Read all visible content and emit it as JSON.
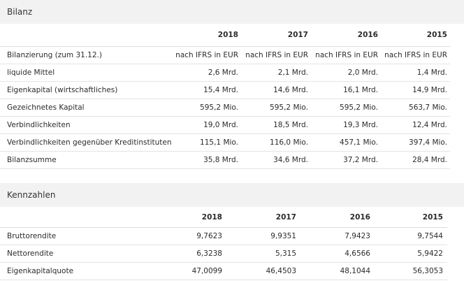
{
  "bilanz": {
    "title": "Bilanz",
    "years": [
      "2018",
      "2017",
      "2016",
      "2015"
    ],
    "rows": [
      {
        "label": "Bilanzierung (zum 31.12.)",
        "values": [
          "nach IFRS in EUR",
          "nach IFRS in EUR",
          "nach IFRS in EUR",
          "nach IFRS in EUR"
        ]
      },
      {
        "label": "liquide Mittel",
        "values": [
          "2,6 Mrd.",
          "2,1 Mrd.",
          "2,0 Mrd.",
          "1,4 Mrd."
        ]
      },
      {
        "label": "Eigenkapital (wirtschaftliches)",
        "values": [
          "15,4 Mrd.",
          "14,6 Mrd.",
          "16,1 Mrd.",
          "14,9 Mrd."
        ]
      },
      {
        "label": "Gezeichnetes Kapital",
        "values": [
          "595,2 Mio.",
          "595,2 Mio.",
          "595,2 Mio.",
          "563,7 Mio."
        ]
      },
      {
        "label": "Verbindlichkeiten",
        "values": [
          "19,0 Mrd.",
          "18,5 Mrd.",
          "19,3 Mrd.",
          "12,4 Mrd."
        ]
      },
      {
        "label": "Verbindlichkeiten gegenüber Kreditinstituten",
        "values": [
          "115,1 Mio.",
          "116,0 Mio.",
          "457,1 Mio.",
          "397,4 Mio."
        ]
      },
      {
        "label": "Bilanzsumme",
        "values": [
          "35,8 Mrd.",
          "34,6 Mrd.",
          "37,2 Mrd.",
          "28,4 Mrd."
        ]
      }
    ]
  },
  "kennzahlen": {
    "title": "Kennzahlen",
    "years": [
      "2018",
      "2017",
      "2016",
      "2015"
    ],
    "rows": [
      {
        "label": "Bruttorendite",
        "values": [
          "9,7623",
          "9,9351",
          "7,9423",
          "9,7544"
        ]
      },
      {
        "label": "Nettorendite",
        "values": [
          "6,3238",
          "5,315",
          "4,6566",
          "5,9422"
        ]
      },
      {
        "label": "Eigenkapitalquote",
        "values": [
          "47,0099",
          "46,4503",
          "48,1044",
          "56,3053"
        ]
      }
    ]
  }
}
